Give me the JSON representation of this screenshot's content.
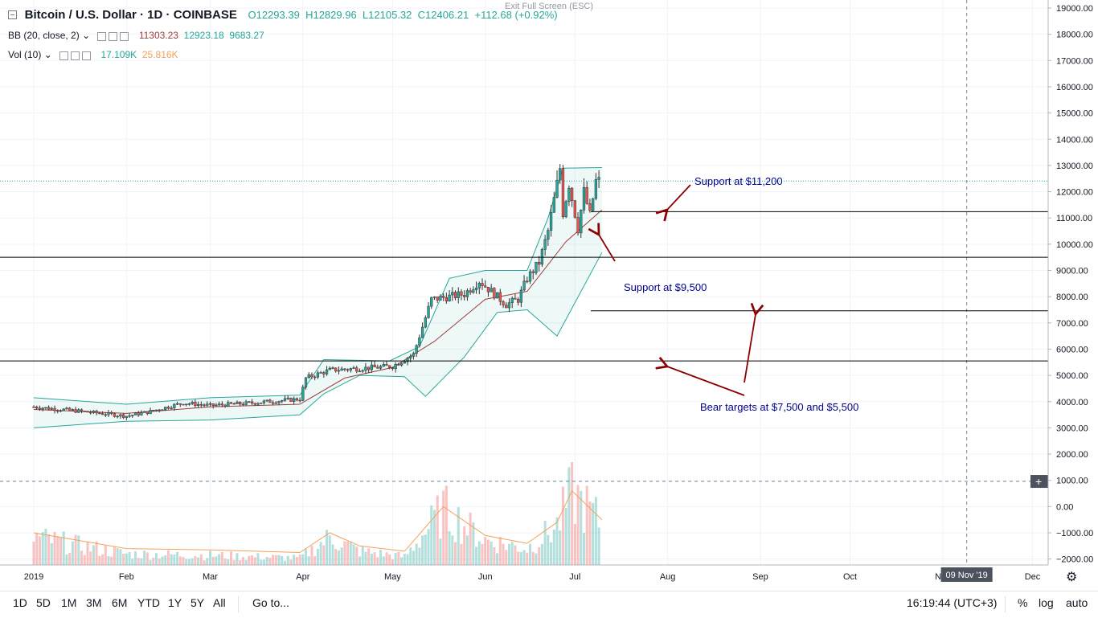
{
  "header": {
    "symbol": "Bitcoin / U.S. Dollar",
    "interval": "1D",
    "exchange": "COINBASE",
    "open": "O12293.39",
    "high": "H12829.96",
    "low": "L12105.32",
    "close": "C12406.21",
    "change": "+112.68 (+0.92%)",
    "exit_fullscreen": "Exit Full Screen (ESC)"
  },
  "indicators": [
    {
      "name": "BB (20, close, 2)",
      "values": [
        "11303.23",
        "12923.18",
        "9683.27"
      ],
      "colors": [
        "#a03c3c",
        "#26a69a",
        "#26a69a"
      ]
    },
    {
      "name": "Vol (10)",
      "values": [
        "17.109K",
        "25.816K"
      ],
      "colors": [
        "#26a69a",
        "#f5a05a"
      ]
    }
  ],
  "toolbar": {
    "timeframes": [
      "1D",
      "5D",
      "1M",
      "3M",
      "6M",
      "YTD",
      "1Y",
      "5Y",
      "All"
    ],
    "goto": "Go to...",
    "clock": "16:19:44 (UTC+3)",
    "percent": "%",
    "log": "log",
    "auto": "auto"
  },
  "colors": {
    "up": "#26a69a",
    "down": "#ef5350",
    "bb_basis": "#a03c3c",
    "bb_band": "#26a69a",
    "annotation": "#00008b",
    "arrow": "#8b0000",
    "vol_ma": "#f5a05a"
  },
  "chart_data": {
    "type": "candlestick",
    "x_labels": [
      "2019",
      "Feb",
      "Mar",
      "Apr",
      "May",
      "Jun",
      "Jul",
      "Aug",
      "Sep",
      "Oct",
      "Nov",
      "Dec"
    ],
    "crosshair_date": "09 Nov '19",
    "price_axis": {
      "ticks": [
        "19000.00",
        "18000.00",
        "17000.00",
        "16000.00",
        "15000.00",
        "14000.00",
        "13000.00",
        "12000.00",
        "11000.00",
        "10000.00",
        "9000.00",
        "8000.00",
        "7000.00",
        "6000.00",
        "5000.00",
        "4000.00",
        "3000.00",
        "2000.00",
        "1000.00",
        "0.00",
        "−1000.00",
        "−2000.00"
      ],
      "range": [
        -2000,
        19000
      ]
    },
    "last_price": "12406.21",
    "crosshair_price": "958.79",
    "horizontal_lines": [
      {
        "value": 11237.83,
        "label": "11237.83"
      },
      {
        "value": 9503.25,
        "label": "9503.25"
      },
      {
        "value": 7460.37,
        "label": "7460.37"
      },
      {
        "value": 5549.72,
        "label": "5549.72"
      }
    ],
    "annotations": [
      {
        "text": "Support at $11,200"
      },
      {
        "text": "Support at $9,500"
      },
      {
        "text": "Bear targets at $7,500 and $5,500"
      }
    ],
    "price_path": [
      [
        "2019-01-01",
        3800
      ],
      [
        "2019-01-15",
        3650
      ],
      [
        "2019-02-01",
        3450
      ],
      [
        "2019-02-08",
        3600
      ],
      [
        "2019-02-20",
        3950
      ],
      [
        "2019-03-01",
        3850
      ],
      [
        "2019-03-15",
        3950
      ],
      [
        "2019-03-31",
        4100
      ],
      [
        "2019-04-02",
        4900
      ],
      [
        "2019-04-10",
        5200
      ],
      [
        "2019-04-25",
        5300
      ],
      [
        "2019-05-01",
        5350
      ],
      [
        "2019-05-08",
        5800
      ],
      [
        "2019-05-14",
        7900
      ],
      [
        "2019-05-20",
        8000
      ],
      [
        "2019-05-25",
        8100
      ],
      [
        "2019-05-30",
        8600
      ],
      [
        "2019-06-04",
        8100
      ],
      [
        "2019-06-08",
        7700
      ],
      [
        "2019-06-12",
        7900
      ],
      [
        "2019-06-15",
        8700
      ],
      [
        "2019-06-19",
        9300
      ],
      [
        "2019-06-22",
        10500
      ],
      [
        "2019-06-26",
        12900
      ],
      [
        "2019-06-27",
        11200
      ],
      [
        "2019-06-29",
        12300
      ],
      [
        "2019-07-02",
        10600
      ],
      [
        "2019-07-04",
        12000
      ],
      [
        "2019-07-06",
        11100
      ],
      [
        "2019-07-08",
        12400
      ],
      [
        "2019-07-10",
        12406
      ]
    ],
    "bb_upper_path": [
      [
        "2019-01-01",
        4150
      ],
      [
        "2019-02-01",
        3900
      ],
      [
        "2019-03-01",
        4150
      ],
      [
        "2019-03-31",
        4250
      ],
      [
        "2019-04-08",
        5600
      ],
      [
        "2019-04-30",
        5550
      ],
      [
        "2019-05-10",
        6100
      ],
      [
        "2019-05-20",
        8700
      ],
      [
        "2019-06-01",
        9000
      ],
      [
        "2019-06-15",
        9000
      ],
      [
        "2019-06-22",
        11000
      ],
      [
        "2019-06-27",
        12900
      ],
      [
        "2019-07-10",
        12920
      ]
    ],
    "bb_lower_path": [
      [
        "2019-01-01",
        3000
      ],
      [
        "2019-02-01",
        3250
      ],
      [
        "2019-03-01",
        3300
      ],
      [
        "2019-03-31",
        3500
      ],
      [
        "2019-04-08",
        4300
      ],
      [
        "2019-04-20",
        5000
      ],
      [
        "2019-05-05",
        4950
      ],
      [
        "2019-05-12",
        4200
      ],
      [
        "2019-05-25",
        5700
      ],
      [
        "2019-06-05",
        7400
      ],
      [
        "2019-06-15",
        7500
      ],
      [
        "2019-06-25",
        6500
      ],
      [
        "2019-07-10",
        9680
      ]
    ],
    "bb_basis_path": [
      [
        "2019-01-01",
        3700
      ],
      [
        "2019-02-01",
        3550
      ],
      [
        "2019-03-01",
        3800
      ],
      [
        "2019-03-31",
        3900
      ],
      [
        "2019-04-15",
        4900
      ],
      [
        "2019-05-01",
        5300
      ],
      [
        "2019-05-15",
        6300
      ],
      [
        "2019-06-01",
        7900
      ],
      [
        "2019-06-15",
        8200
      ],
      [
        "2019-06-28",
        10100
      ],
      [
        "2019-07-10",
        11303
      ]
    ],
    "volume_ma_path": [
      [
        "2019-01-01",
        -1000
      ],
      [
        "2019-02-01",
        -1600
      ],
      [
        "2019-03-01",
        -1650
      ],
      [
        "2019-03-31",
        -1750
      ],
      [
        "2019-04-10",
        -1000
      ],
      [
        "2019-04-20",
        -1500
      ],
      [
        "2019-05-05",
        -1700
      ],
      [
        "2019-05-18",
        0
      ],
      [
        "2019-06-01",
        -1100
      ],
      [
        "2019-06-15",
        -1400
      ],
      [
        "2019-06-25",
        -600
      ],
      [
        "2019-06-30",
        600
      ],
      [
        "2019-07-10",
        -500
      ]
    ]
  }
}
